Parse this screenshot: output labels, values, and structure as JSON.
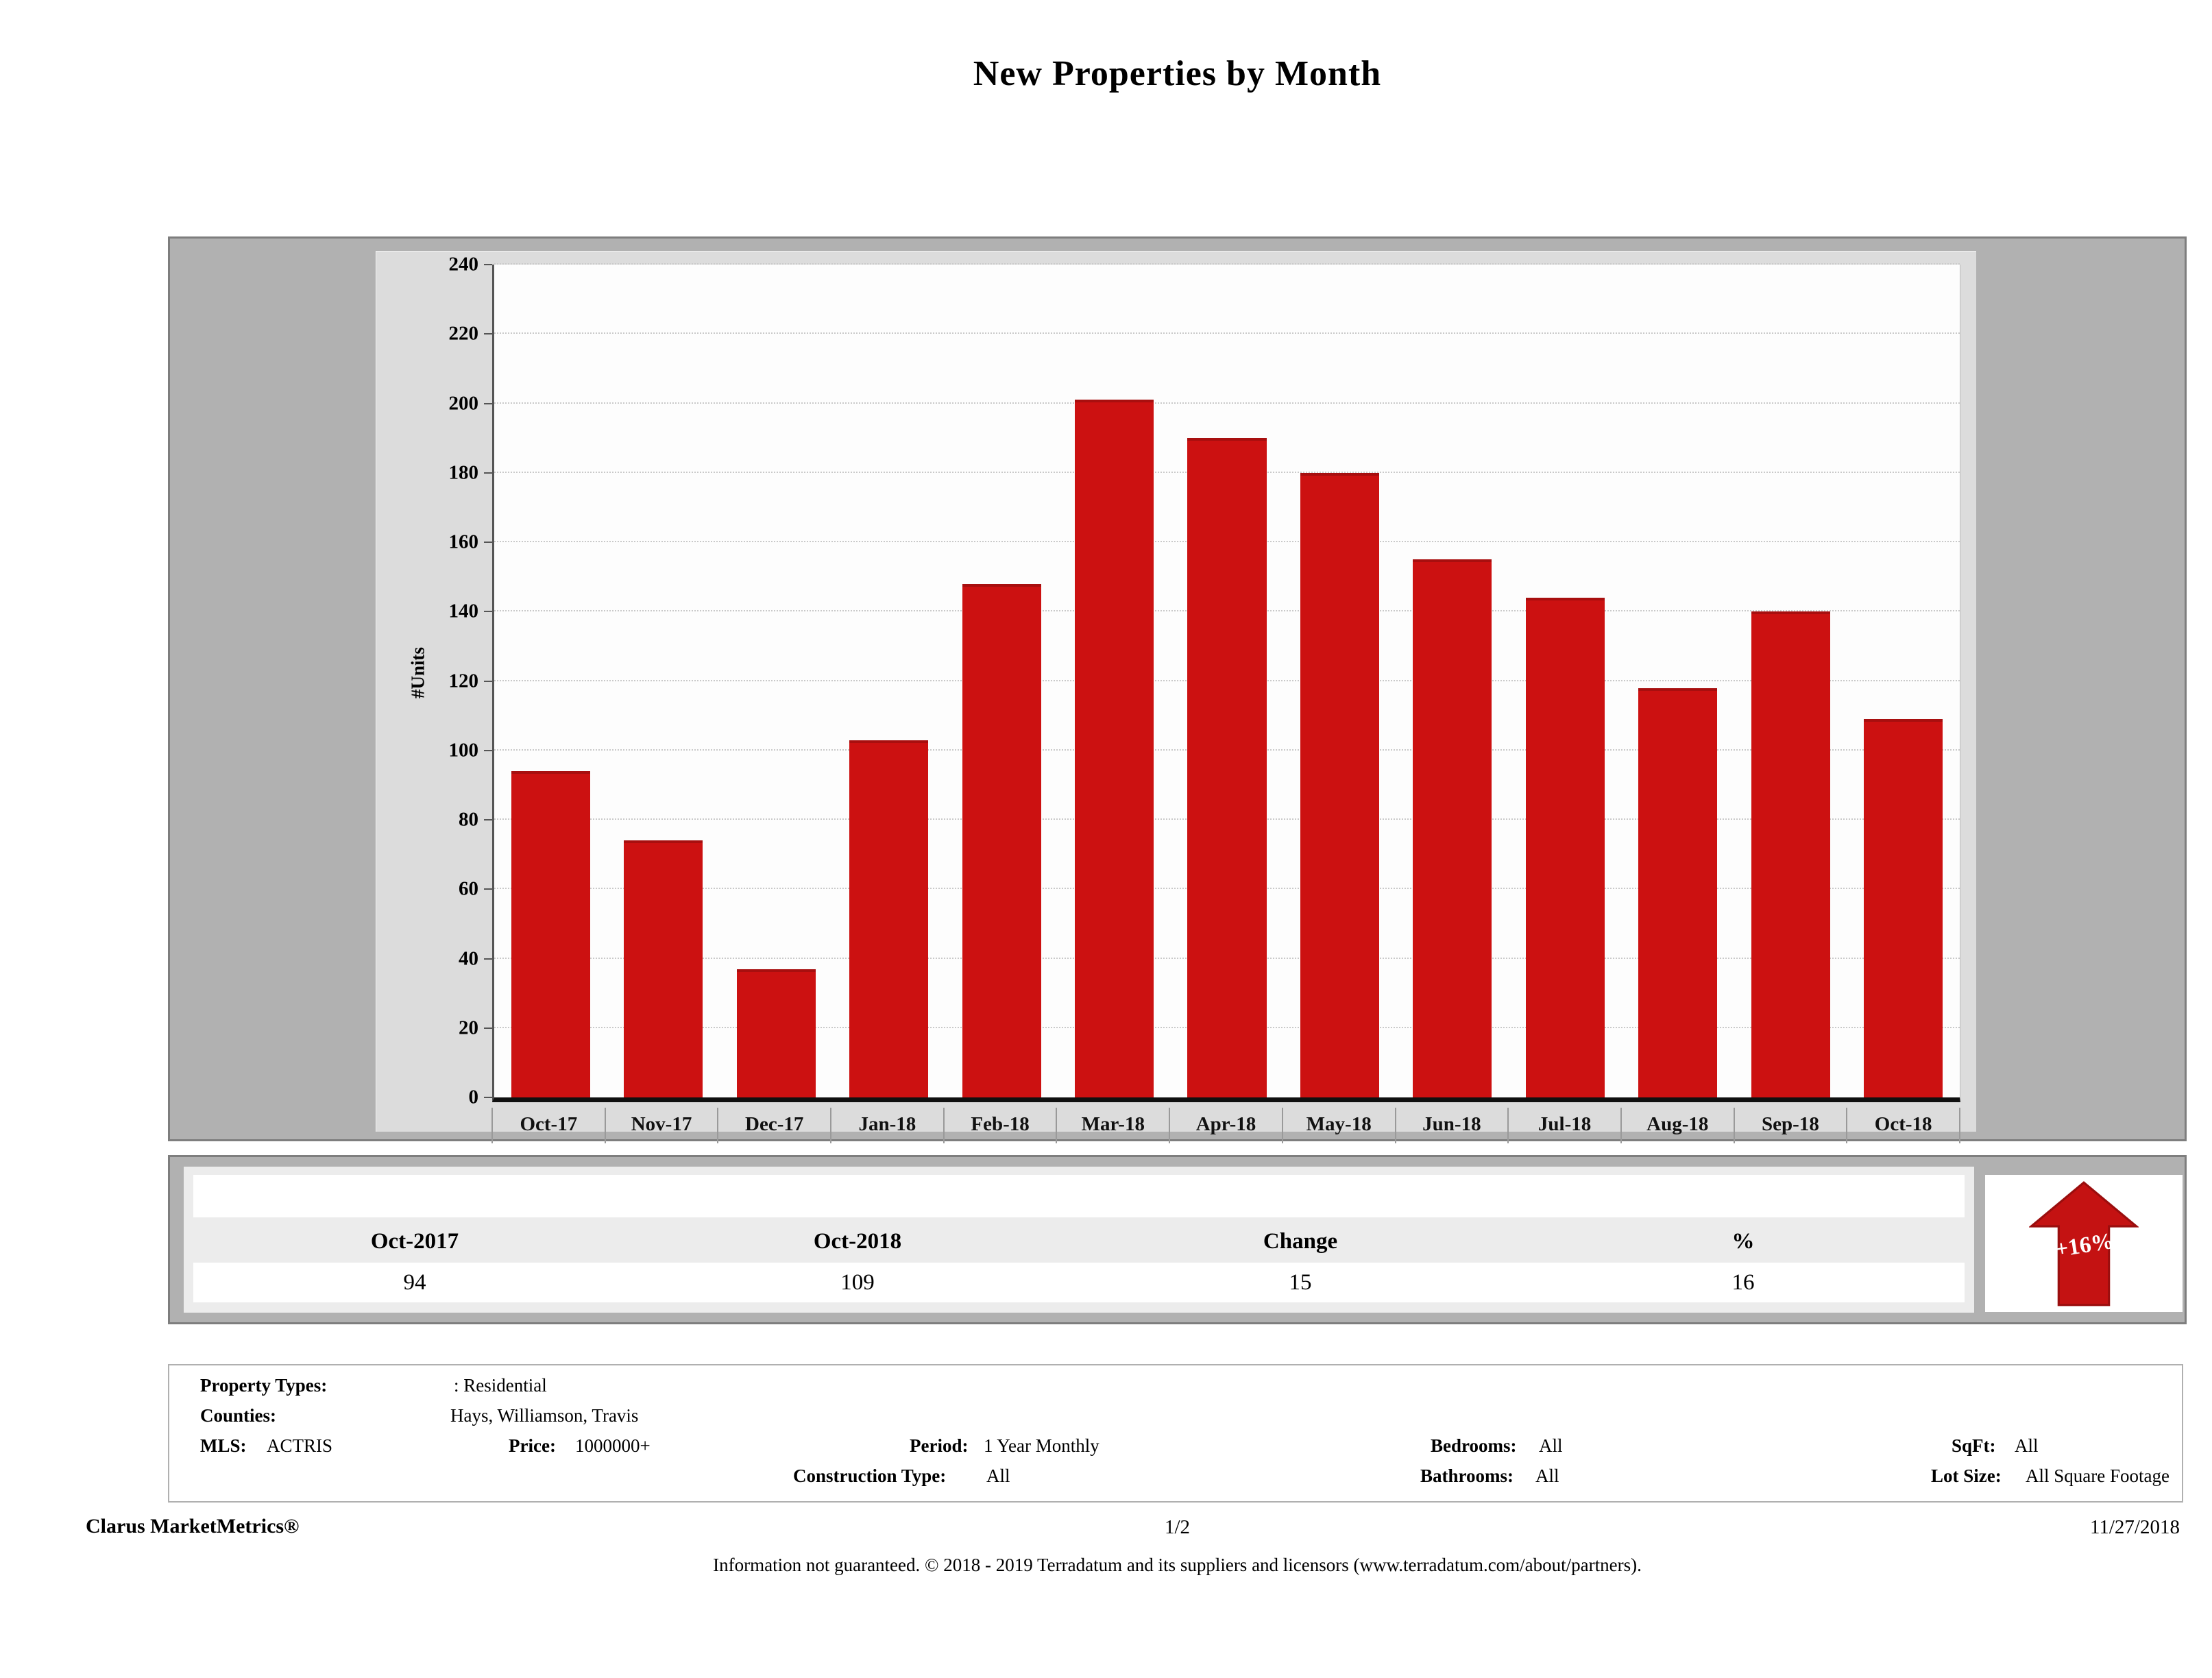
{
  "title": "New Properties by Month",
  "chart_data": {
    "type": "bar",
    "title": "New Properties by Month",
    "categories": [
      "Oct-17",
      "Nov-17",
      "Dec-17",
      "Jan-18",
      "Feb-18",
      "Mar-18",
      "Apr-18",
      "May-18",
      "Jun-18",
      "Jul-18",
      "Aug-18",
      "Sep-18",
      "Oct-18"
    ],
    "values": [
      94,
      74,
      37,
      103,
      148,
      201,
      190,
      180,
      155,
      144,
      118,
      140,
      109
    ],
    "xlabel": "",
    "ylabel": "#Units",
    "ylim": [
      0,
      240
    ],
    "ytick_step": 20,
    "grid": "horizontal-dotted",
    "legend": "none",
    "bar_color": "#cc1111"
  },
  "summary_table": {
    "headers": [
      "Oct-2017",
      "Oct-2018",
      "Change",
      "%"
    ],
    "values": [
      "94",
      "109",
      "15",
      "16"
    ],
    "badge": {
      "label": "+16%",
      "direction": "up",
      "color": "#c41212"
    }
  },
  "filters": {
    "property_types_label": "Property Types:",
    "property_types_value": ": Residential",
    "counties_label": "Counties:",
    "counties_value": "Hays, Williamson, Travis",
    "mls_label": "MLS:",
    "mls_value": "ACTRIS",
    "price_label": "Price:",
    "price_value": "1000000+",
    "period_label": "Period:",
    "period_value": "1 Year Monthly",
    "construction_type_label": "Construction Type:",
    "construction_type_value": "All",
    "bedrooms_label": "Bedrooms:",
    "bedrooms_value": "All",
    "bathrooms_label": "Bathrooms:",
    "bathrooms_value": "All",
    "sqft_label": "SqFt:",
    "sqft_value": "All",
    "lot_size_label": "Lot Size:",
    "lot_size_value": "All Square Footage"
  },
  "footer": {
    "brand": "Clarus MarketMetrics®",
    "page": "1/2",
    "date": "11/27/2018",
    "disclaimer": "Information not guaranteed. © 2018 - 2019 Terradatum and its suppliers and licensors (www.terradatum.com/about/partners)."
  }
}
